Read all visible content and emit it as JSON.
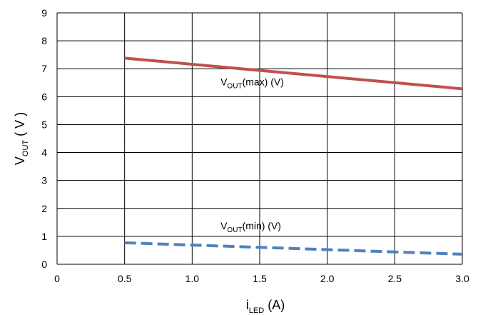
{
  "chart_data": {
    "type": "line",
    "title": "",
    "xlabel": {
      "main": "i",
      "sub": "LED",
      "suffix": " (A)"
    },
    "ylabel": {
      "main": "V",
      "sub": "OUT",
      "suffix": " ( V )"
    },
    "xlim": [
      0,
      3.0
    ],
    "ylim": [
      0,
      9
    ],
    "x_ticks": [
      0,
      0.5,
      1.0,
      1.5,
      2.0,
      2.5,
      3.0
    ],
    "x_tick_labels": [
      "0",
      "0.5",
      "1.0",
      "1.5",
      "2.0",
      "2.5",
      "3.0"
    ],
    "y_ticks": [
      0,
      1,
      2,
      3,
      4,
      5,
      6,
      7,
      8,
      9
    ],
    "y_tick_labels": [
      "0",
      "1",
      "2",
      "3",
      "4",
      "5",
      "6",
      "7",
      "8",
      "9"
    ],
    "grid": true,
    "series": [
      {
        "name": {
          "main": "V",
          "sub": "OUT",
          "suffix": "(max) (V)"
        },
        "x": [
          0.5,
          3.0
        ],
        "y": [
          7.38,
          6.28
        ],
        "color": "#c0504d",
        "dash": "solid",
        "label_at": [
          1.21,
          6.4
        ]
      },
      {
        "name": {
          "main": "V",
          "sub": "OUT",
          "suffix": "(min) (V)"
        },
        "x": [
          0.5,
          3.0
        ],
        "y": [
          0.77,
          0.36
        ],
        "color": "#4f81bd",
        "dash": "dashed",
        "label_at": [
          1.21,
          1.25
        ]
      }
    ]
  }
}
